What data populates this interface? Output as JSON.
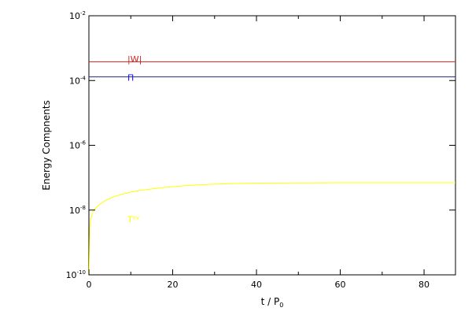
{
  "chart_data": {
    "type": "line",
    "xlabel": "t / P",
    "xlabel_sub": "0",
    "ylabel": "Energy Compnents",
    "xlim": [
      0,
      87.5
    ],
    "ylim": [
      1e-10,
      0.01
    ],
    "yscale": "log",
    "grid": false,
    "x_ticks": [
      {
        "value": 0,
        "label": "0"
      },
      {
        "value": 20,
        "label": "20"
      },
      {
        "value": 40,
        "label": "40"
      },
      {
        "value": 60,
        "label": "60"
      },
      {
        "value": 80,
        "label": "80"
      }
    ],
    "y_ticks": [
      {
        "value": 1e-10,
        "base": "10",
        "exp": "-10"
      },
      {
        "value": 1e-08,
        "base": "10",
        "exp": "-8"
      },
      {
        "value": 1e-06,
        "base": "10",
        "exp": "-6"
      },
      {
        "value": 0.0001,
        "base": "10",
        "exp": "-4"
      },
      {
        "value": 0.01,
        "base": "10",
        "exp": "-2"
      }
    ],
    "series": [
      {
        "name": "|W|",
        "color": "#d02020",
        "label_at": {
          "x": 9.2,
          "y": 0.00046
        },
        "x": [
          0,
          87.5
        ],
        "y": [
          0.00038,
          0.00038
        ]
      },
      {
        "name": "Π",
        "color": "#1010ff",
        "line_color": "#2a2a7a",
        "label_at": {
          "x": 9.2,
          "y": 0.000125
        },
        "x": [
          0,
          87.5
        ],
        "y": [
          0.00013,
          0.00013
        ]
      },
      {
        "name": "T",
        "name_sup": "ev",
        "color": "#ffff00",
        "label_at": {
          "x": 9.2,
          "y": 5.2e-09
        },
        "x": [
          0.05,
          0.2,
          0.4,
          0.7,
          1,
          1.5,
          2,
          3,
          4,
          5,
          6,
          8,
          10,
          12,
          15,
          18,
          20,
          25,
          30,
          35,
          40,
          50,
          60,
          70,
          80,
          87.5
        ],
        "y": [
          1e-10,
          3e-09,
          5e-09,
          7e-09,
          9e-09,
          1.1e-08,
          1.3e-08,
          1.65e-08,
          2e-08,
          2.3e-08,
          2.6e-08,
          3.1e-08,
          3.6e-08,
          4e-08,
          4.5e-08,
          5e-08,
          5.3e-08,
          5.9e-08,
          6.3e-08,
          6.6e-08,
          6.8e-08,
          6.9e-08,
          7e-08,
          7e-08,
          7e-08,
          7e-08
        ]
      }
    ]
  }
}
